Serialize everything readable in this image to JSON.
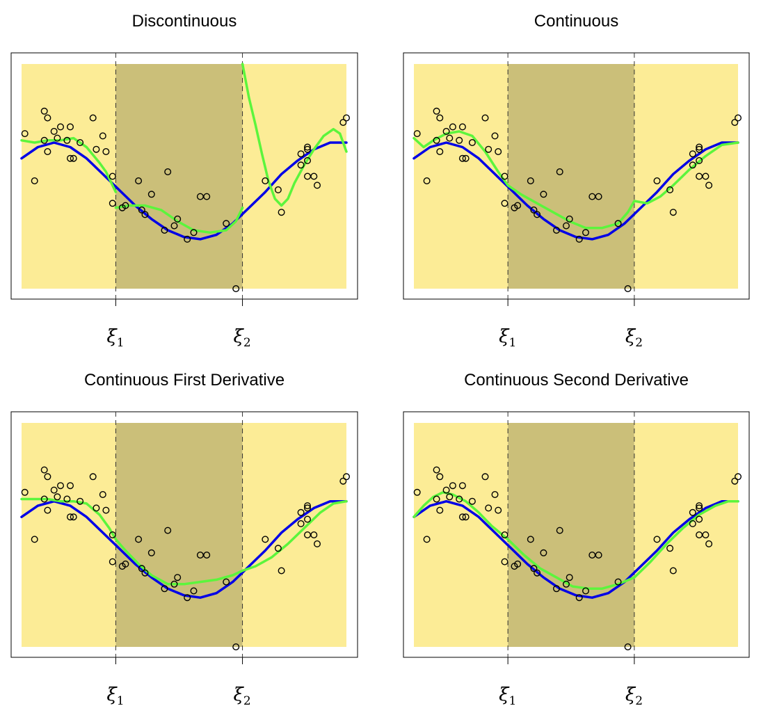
{
  "colors": {
    "outer_region": "#fcec96",
    "middle_region": "#cbbf79",
    "true_curve": "#0000e6",
    "fit_curve": "#5cf53c",
    "points": "#000000",
    "knot_line": "#333333"
  },
  "knots": [
    {
      "symbol": "ξ",
      "sub": "1",
      "x": 0.29
    },
    {
      "symbol": "ξ",
      "sub": "2",
      "x": 0.68
    }
  ],
  "chart_data": [
    {
      "type": "line",
      "title": "Discontinuous",
      "xlim": [
        0,
        1
      ],
      "ylim": [
        0,
        1
      ],
      "grid": false,
      "fit": [
        {
          "x": [
            0.0,
            0.04,
            0.08,
            0.12,
            0.16,
            0.2,
            0.24,
            0.26,
            0.29
          ],
          "y": [
            0.66,
            0.65,
            0.66,
            0.66,
            0.67,
            0.63,
            0.56,
            0.52,
            0.43
          ]
        },
        {
          "x": [
            0.29,
            0.33,
            0.38,
            0.43,
            0.48,
            0.53,
            0.58,
            0.63,
            0.66,
            0.68
          ],
          "y": [
            0.36,
            0.37,
            0.37,
            0.35,
            0.3,
            0.26,
            0.25,
            0.26,
            0.3,
            0.36
          ]
        },
        {
          "x": [
            0.68,
            0.7,
            0.72,
            0.74,
            0.76,
            0.78,
            0.8,
            0.82,
            0.84,
            0.87,
            0.9,
            0.93,
            0.96,
            0.98,
            1.0
          ],
          "y": [
            1.0,
            0.85,
            0.73,
            0.6,
            0.48,
            0.4,
            0.37,
            0.4,
            0.47,
            0.55,
            0.62,
            0.68,
            0.71,
            0.69,
            0.61
          ]
        }
      ]
    },
    {
      "type": "line",
      "title": "Continuous",
      "xlim": [
        0,
        1
      ],
      "ylim": [
        0,
        1
      ],
      "grid": false,
      "fit": [
        {
          "x": [
            0.0,
            0.03,
            0.06,
            0.1,
            0.14,
            0.18,
            0.22,
            0.26,
            0.29,
            0.33,
            0.38,
            0.43,
            0.48,
            0.53,
            0.58,
            0.63,
            0.66,
            0.68,
            0.72,
            0.76,
            0.8,
            0.85,
            0.9,
            0.95,
            1.0
          ],
          "y": [
            0.67,
            0.63,
            0.66,
            0.69,
            0.7,
            0.68,
            0.61,
            0.52,
            0.46,
            0.42,
            0.38,
            0.34,
            0.3,
            0.27,
            0.27,
            0.29,
            0.34,
            0.39,
            0.38,
            0.41,
            0.46,
            0.53,
            0.59,
            0.64,
            0.65
          ]
        }
      ]
    },
    {
      "type": "line",
      "title": "Continuous First Derivative",
      "xlim": [
        0,
        1
      ],
      "ylim": [
        0,
        1
      ],
      "grid": false,
      "fit": [
        {
          "x": [
            0.0,
            0.04,
            0.08,
            0.12,
            0.16,
            0.2,
            0.24,
            0.27,
            0.29,
            0.32,
            0.36,
            0.4,
            0.45,
            0.5,
            0.55,
            0.6,
            0.65,
            0.68,
            0.72,
            0.77,
            0.82,
            0.87,
            0.92,
            0.96,
            1.0
          ],
          "y": [
            0.66,
            0.66,
            0.66,
            0.65,
            0.65,
            0.64,
            0.59,
            0.53,
            0.48,
            0.43,
            0.37,
            0.32,
            0.28,
            0.28,
            0.29,
            0.3,
            0.32,
            0.34,
            0.36,
            0.4,
            0.46,
            0.53,
            0.6,
            0.64,
            0.65
          ]
        }
      ]
    },
    {
      "type": "line",
      "title": "Continuous Second Derivative",
      "xlim": [
        0,
        1
      ],
      "ylim": [
        0,
        1
      ],
      "grid": false,
      "fit": [
        {
          "x": [
            0.0,
            0.03,
            0.06,
            0.09,
            0.12,
            0.16,
            0.2,
            0.24,
            0.29,
            0.34,
            0.39,
            0.44,
            0.49,
            0.54,
            0.58,
            0.63,
            0.68,
            0.73,
            0.78,
            0.83,
            0.88,
            0.93,
            0.97,
            1.0
          ],
          "y": [
            0.58,
            0.63,
            0.67,
            0.69,
            0.68,
            0.65,
            0.6,
            0.54,
            0.48,
            0.41,
            0.35,
            0.31,
            0.27,
            0.26,
            0.26,
            0.28,
            0.31,
            0.38,
            0.46,
            0.53,
            0.59,
            0.63,
            0.65,
            0.65
          ]
        }
      ]
    }
  ],
  "shared": {
    "true_function": {
      "x": [
        0.0,
        0.05,
        0.1,
        0.15,
        0.2,
        0.25,
        0.3,
        0.35,
        0.4,
        0.45,
        0.5,
        0.55,
        0.6,
        0.65,
        0.7,
        0.75,
        0.8,
        0.85,
        0.9,
        0.95,
        1.0
      ],
      "y": [
        0.58,
        0.63,
        0.65,
        0.63,
        0.58,
        0.51,
        0.44,
        0.37,
        0.31,
        0.26,
        0.23,
        0.22,
        0.24,
        0.29,
        0.36,
        0.43,
        0.51,
        0.57,
        0.62,
        0.65,
        0.65
      ]
    },
    "points": {
      "x": [
        0.01,
        0.04,
        0.07,
        0.08,
        0.07,
        0.08,
        0.1,
        0.11,
        0.12,
        0.14,
        0.15,
        0.15,
        0.16,
        0.18,
        0.22,
        0.23,
        0.25,
        0.26,
        0.28,
        0.28,
        0.31,
        0.32,
        0.36,
        0.37,
        0.38,
        0.4,
        0.44,
        0.45,
        0.47,
        0.48,
        0.51,
        0.53,
        0.55,
        0.57,
        0.63,
        0.66,
        0.75,
        0.79,
        0.8,
        0.86,
        0.86,
        0.88,
        0.88,
        0.88,
        0.88,
        0.9,
        0.91,
        0.99,
        1.0
      ],
      "y": [
        0.69,
        0.48,
        0.79,
        0.76,
        0.66,
        0.61,
        0.7,
        0.67,
        0.72,
        0.66,
        0.58,
        0.72,
        0.58,
        0.65,
        0.76,
        0.62,
        0.68,
        0.61,
        0.5,
        0.38,
        0.36,
        0.37,
        0.48,
        0.35,
        0.33,
        0.42,
        0.26,
        0.52,
        0.28,
        0.31,
        0.22,
        0.25,
        0.41,
        0.41,
        0.29,
        0.0,
        0.48,
        0.44,
        0.34,
        0.6,
        0.55,
        0.62,
        0.63,
        0.57,
        0.5,
        0.5,
        0.46,
        0.74,
        0.76
      ]
    }
  }
}
